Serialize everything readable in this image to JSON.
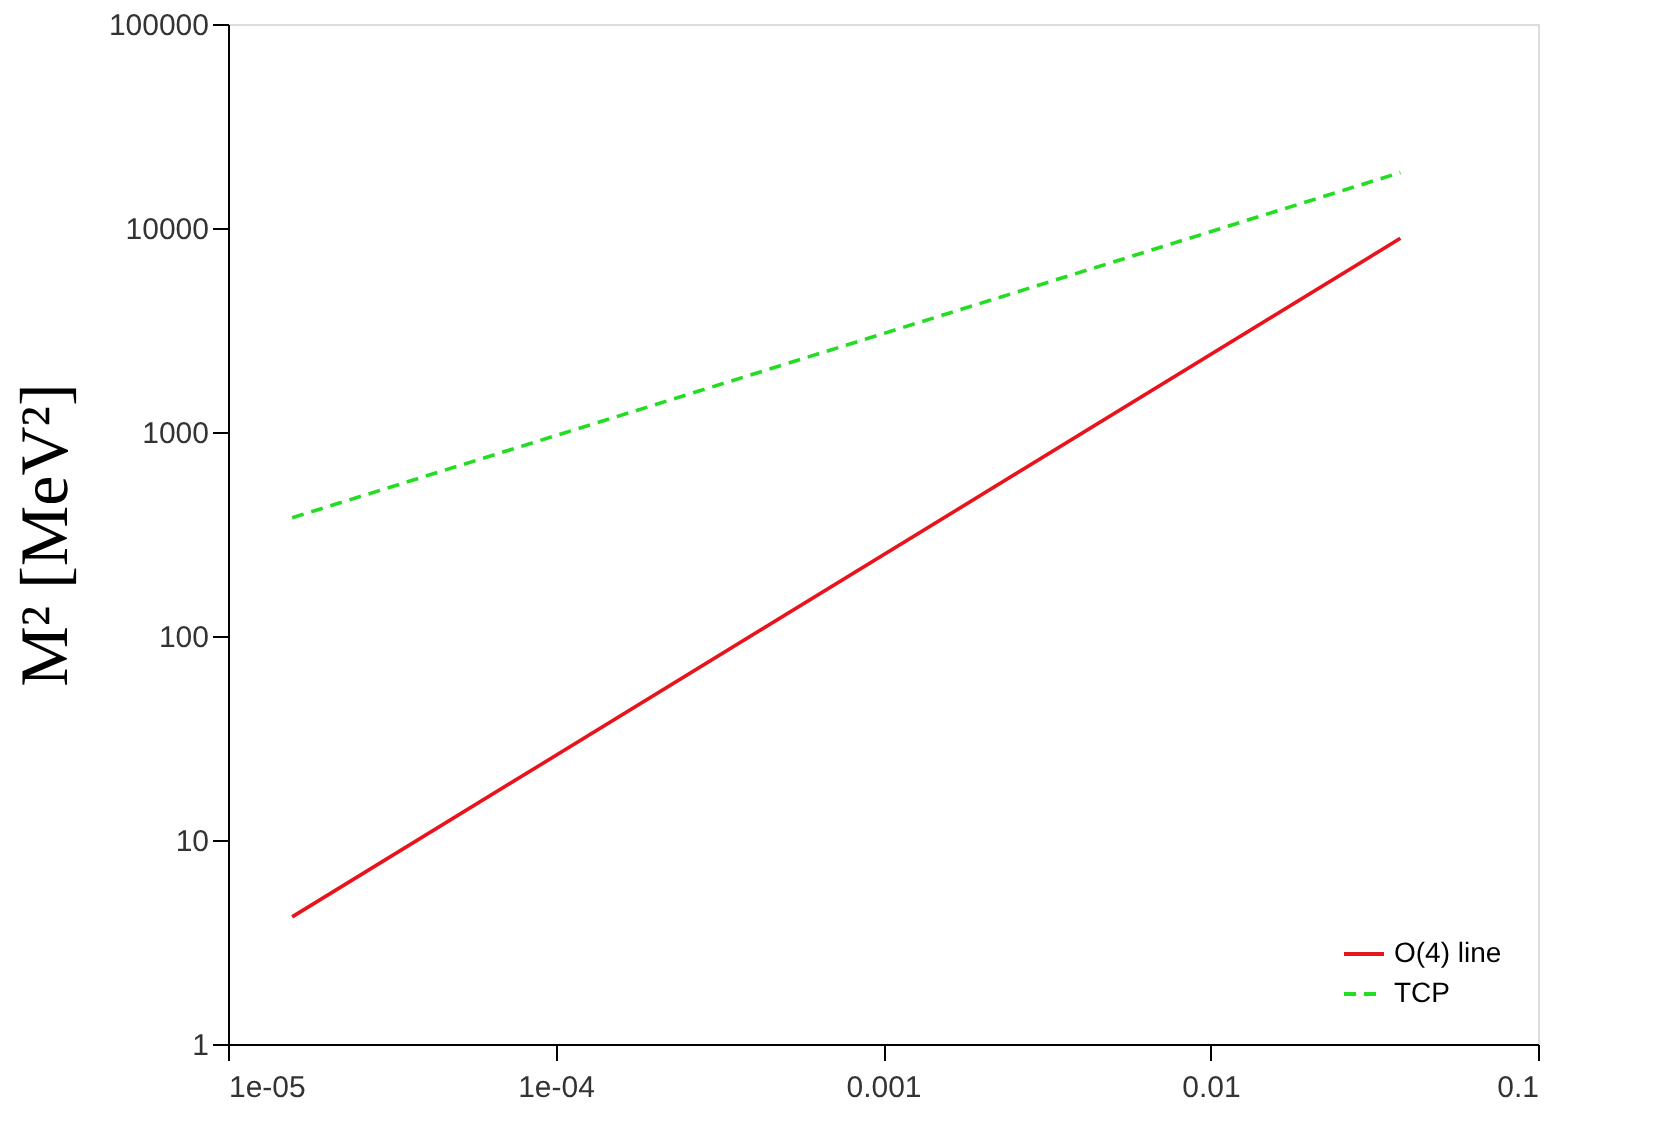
{
  "chart_data": {
    "type": "line",
    "ylabel": "M² [MeV²]",
    "log": "xy",
    "grid": false,
    "legend": "bottom right",
    "marker": "none",
    "xlim": [
      1e-05,
      0.1
    ],
    "ylim": [
      1,
      100000
    ],
    "xticks": [
      {
        "value": 1e-05,
        "label": "1e-05"
      },
      {
        "value": 0.0001,
        "label": "1e-04"
      },
      0.001,
      0.01,
      0.1
    ],
    "yticks": [
      1,
      10,
      100,
      1000,
      10000,
      100000
    ],
    "x": [
      1.57e-05,
      0.038
    ],
    "series": [
      {
        "name": "O(4) line",
        "color": "#e8141c",
        "line_style": "solid",
        "values": [
          4.2,
          8900
        ]
      },
      {
        "name": "TCP",
        "color": "#22dd22",
        "line_style": "dashed",
        "values": [
          380,
          18700
        ]
      }
    ]
  }
}
